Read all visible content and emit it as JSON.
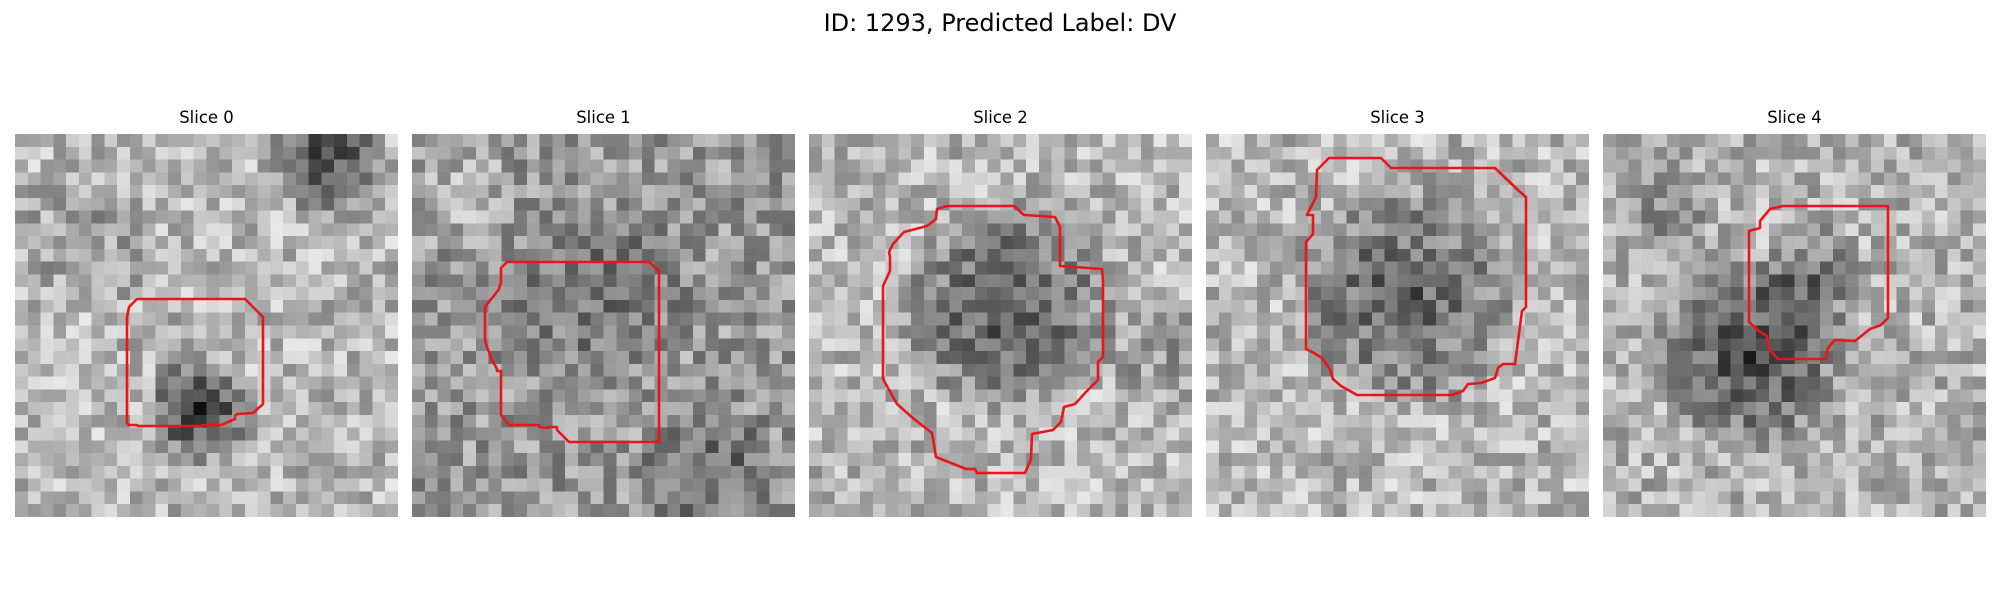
{
  "figure": {
    "title": "ID: 1293, Predicted Label: DV"
  },
  "slices": [
    {
      "title": "Slice 0"
    },
    {
      "title": "Slice 1"
    },
    {
      "title": "Slice 2"
    },
    {
      "title": "Slice 3"
    },
    {
      "title": "Slice 4"
    }
  ],
  "colors": {
    "contour": "#e8161b",
    "colormap": "grayscale"
  }
}
